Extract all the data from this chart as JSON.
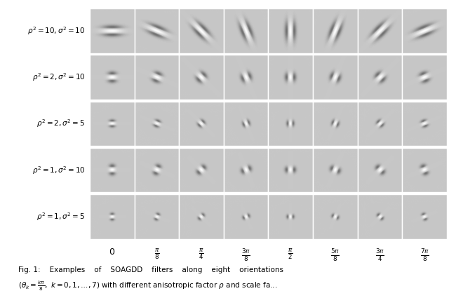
{
  "rows": [
    {
      "rho2": 10,
      "sigma2": 10
    },
    {
      "rho2": 2,
      "sigma2": 10
    },
    {
      "rho2": 2,
      "sigma2": 5
    },
    {
      "rho2": 1,
      "sigma2": 10
    },
    {
      "rho2": 1,
      "sigma2": 5
    }
  ],
  "n_cols": 8,
  "angles_deg": [
    0,
    22.5,
    45,
    67.5,
    90,
    112.5,
    135,
    157.5
  ],
  "angle_labels": [
    "0",
    "\\frac{\\pi}{8}",
    "\\frac{\\pi}{4}",
    "\\frac{3\\pi}{8}",
    "\\frac{\\pi}{2}",
    "\\frac{5\\pi}{8}",
    "\\frac{3\\pi}{4}",
    "\\frac{7\\pi}{8}"
  ],
  "bg_gray": 0.78,
  "figsize": [
    6.4,
    4.25
  ],
  "dpi": 100,
  "grid_size": 65
}
